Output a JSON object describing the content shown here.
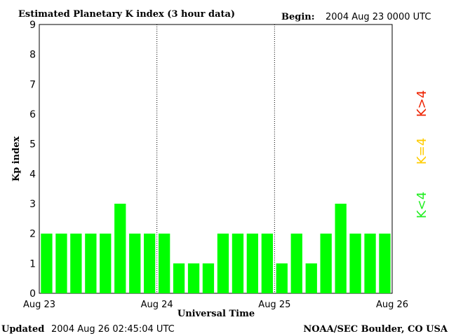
{
  "chart_data": {
    "type": "bar",
    "title": "Estimated Planetary K index (3 hour data)",
    "begin_label": "Begin:",
    "begin_value": "2004 Aug 23 0000 UTC",
    "ylabel": "Kp index",
    "xlabel": "Universal Time",
    "ylim": [
      0,
      9
    ],
    "yticks": [
      "0",
      "1",
      "2",
      "3",
      "4",
      "5",
      "6",
      "7",
      "8",
      "9"
    ],
    "xticks": [
      "Aug 23",
      "Aug 24",
      "Aug 25",
      "Aug 26"
    ],
    "values": [
      2,
      2,
      2,
      2,
      2,
      3,
      2,
      2,
      2,
      1,
      1,
      1,
      2,
      2,
      2,
      2,
      1,
      2,
      1,
      2,
      3,
      2,
      2,
      2
    ],
    "bar_color": "#00ff00",
    "grid": "dotted vertical lines at day boundaries",
    "legend": {
      "placement": "right",
      "items": [
        {
          "label": "K<4",
          "color": "#22ee22"
        },
        {
          "label": "K=4",
          "color": "#ffcc00"
        },
        {
          "label": "K>4",
          "color": "#ee2200"
        }
      ]
    }
  },
  "footer": {
    "updated_label": "Updated",
    "updated_value": "2004 Aug 26 02:45:04 UTC",
    "credit": "NOAA/SEC Boulder, CO USA"
  }
}
